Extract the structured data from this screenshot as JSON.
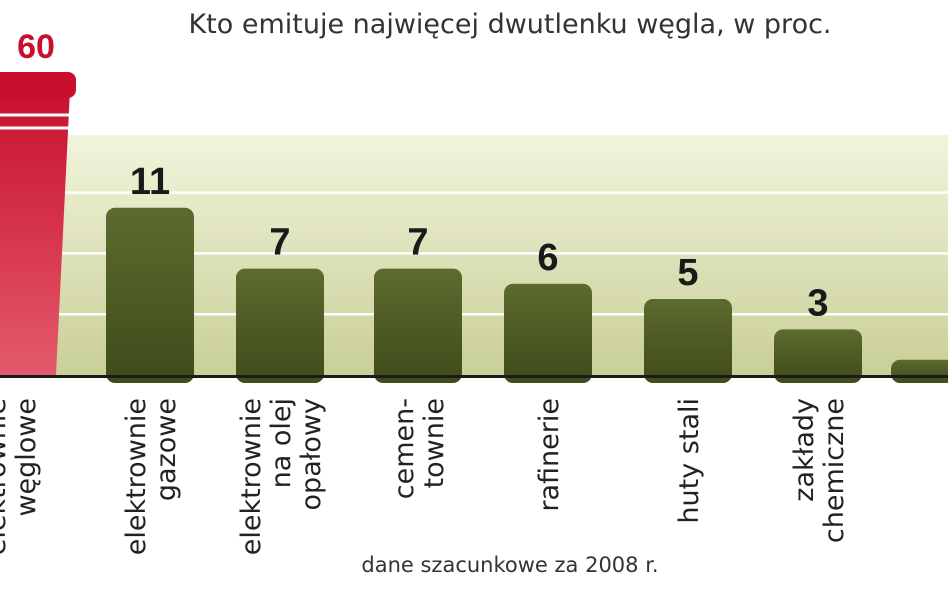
{
  "title": "Kto emituje najwięcej dwutlenku węgla, w proc.",
  "source_note": "dane szacunkowe za 2008 r.",
  "colors": {
    "highlight": "#c8102e",
    "highlight_light": "#e45a6c",
    "bar": "#5c6b2e",
    "bar_dark": "#3f4b1a",
    "band_top": "#f2f4dc",
    "band_bottom": "#c9cf97",
    "axis": "#1a1a1a"
  },
  "chart_data": {
    "type": "bar",
    "title": "Kto emituje najwięcej dwutlenku węgla, w proc.",
    "categories": [
      [
        "elektrownie",
        "węglowe"
      ],
      [
        "elektrownie",
        "gazowe"
      ],
      [
        "elektrownie",
        "na olej",
        "opałowy"
      ],
      [
        "cemen-",
        "townie"
      ],
      [
        "rafinerie"
      ],
      [
        "huty stali"
      ],
      [
        "zakłady",
        "chemiczne"
      ],
      [
        ""
      ]
    ],
    "values": [
      60,
      11,
      7,
      7,
      6,
      5,
      3,
      1
    ],
    "value_labels": [
      "60",
      "11",
      "7",
      "7",
      "6",
      "5",
      "3",
      ""
    ],
    "highlight_index": 0,
    "ylim": [
      0,
      16
    ],
    "gridlines": [
      4,
      8,
      12
    ],
    "grid": true,
    "legend": "none",
    "xlabel": "",
    "ylabel": ""
  }
}
